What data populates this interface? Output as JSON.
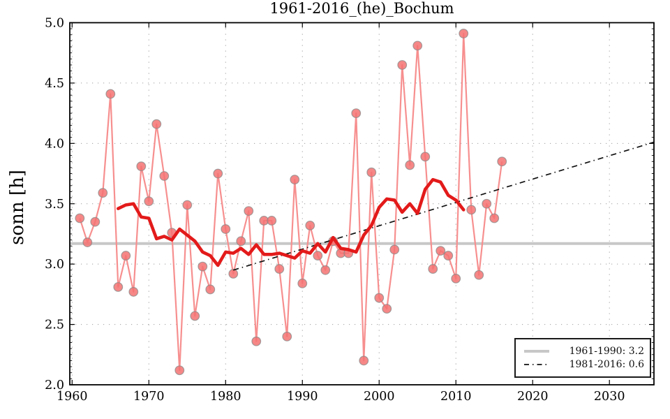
{
  "chart": {
    "title": "1961-2016_(he)_Bochum",
    "ylabel": "sonn [h]"
  },
  "legend": {
    "position": "lower right",
    "items": [
      {
        "label": "1961-1990: 3.2",
        "style": "thick-gray-solid"
      },
      {
        "label": "1981-2016: 0.6",
        "style": "black-dash-dot"
      }
    ]
  },
  "colors": {
    "annual_line": "#f78f8f",
    "marker_fill": "#f47272",
    "marker_edge": "#8a8a8a",
    "smoothed_line": "#e31a1a",
    "mean_line": "#c7c7c7",
    "trend_line": "#111111",
    "grid": "#9e9e9e",
    "spine": "#000000",
    "background": "#ffffff"
  },
  "chart_data": {
    "type": "line",
    "title": "1961-2016_(he)_Bochum",
    "xlabel": "",
    "ylabel": "sonn [h]",
    "xlim": [
      1959.7,
      2035.8
    ],
    "ylim": [
      2.0,
      5.0
    ],
    "xticks": [
      1960,
      1970,
      1980,
      1990,
      2000,
      2010,
      2020,
      2030
    ],
    "xtick_labels": [
      "1960",
      "1970",
      "1980",
      "1990",
      "2000",
      "2010",
      "2020",
      "2030"
    ],
    "yticks": [
      2.0,
      2.5,
      3.0,
      3.5,
      4.0,
      4.5,
      5.0
    ],
    "ytick_labels": [
      "2.0",
      "2.5",
      "3.0",
      "3.5",
      "4.0",
      "4.5",
      "5.0"
    ],
    "grid": true,
    "y_minor_tick_step": 0.05,
    "series": [
      {
        "name": "annual",
        "years": [
          1961,
          1962,
          1963,
          1964,
          1965,
          1966,
          1967,
          1968,
          1969,
          1970,
          1971,
          1972,
          1973,
          1974,
          1975,
          1976,
          1977,
          1978,
          1979,
          1980,
          1981,
          1982,
          1983,
          1984,
          1985,
          1986,
          1987,
          1988,
          1989,
          1990,
          1991,
          1992,
          1993,
          1994,
          1995,
          1996,
          1997,
          1998,
          1999,
          2000,
          2001,
          2002,
          2003,
          2004,
          2005,
          2006,
          2007,
          2008,
          2009,
          2010,
          2011,
          2012,
          2013,
          2014,
          2015,
          2016
        ],
        "values": [
          3.38,
          3.18,
          3.35,
          3.59,
          4.41,
          2.81,
          3.07,
          2.77,
          3.81,
          3.52,
          4.16,
          3.73,
          3.26,
          2.12,
          3.49,
          2.57,
          2.98,
          2.79,
          3.75,
          3.29,
          2.92,
          3.19,
          3.44,
          2.36,
          3.36,
          3.36,
          2.96,
          2.4,
          3.7,
          2.84,
          3.32,
          3.07,
          2.95,
          3.19,
          3.09,
          3.09,
          4.25,
          2.2,
          3.76,
          2.72,
          2.63,
          3.12,
          4.65,
          3.82,
          4.81,
          3.89,
          2.96,
          3.11,
          3.07,
          2.88,
          4.91,
          3.45,
          2.91,
          3.5,
          3.38,
          3.85
        ]
      },
      {
        "name": "running-mean-11yr",
        "description": "centered 11-year running mean of annual series",
        "window": 11,
        "start_year": 1966,
        "end_year": 2011,
        "values": [
          3.46,
          3.49,
          3.5,
          3.39,
          3.38,
          3.21,
          3.23,
          3.2,
          3.29,
          3.24,
          3.19,
          3.1,
          3.07,
          2.99,
          3.1,
          3.09,
          3.13,
          3.08,
          3.16,
          3.08,
          3.08,
          3.09,
          3.07,
          3.05,
          3.11,
          3.09,
          3.17,
          3.1,
          3.22,
          3.13,
          3.12,
          3.1,
          3.24,
          3.32,
          3.47,
          3.54,
          3.53,
          3.43,
          3.5,
          3.42,
          3.62,
          3.7,
          3.68,
          3.57,
          3.53,
          3.45
        ]
      },
      {
        "name": "mean-1961-1990",
        "legend_label": "1961-1990: 3.2",
        "display_value": 3.2,
        "plot_value": 3.17,
        "x_span": [
          1959.7,
          2035.8
        ]
      },
      {
        "name": "trend-1981-2016",
        "legend_label": "1981-2016: 0.6",
        "display_value": 0.6,
        "x": [
          1981,
          2035.8
        ],
        "values": [
          2.95,
          4.01
        ]
      }
    ]
  }
}
